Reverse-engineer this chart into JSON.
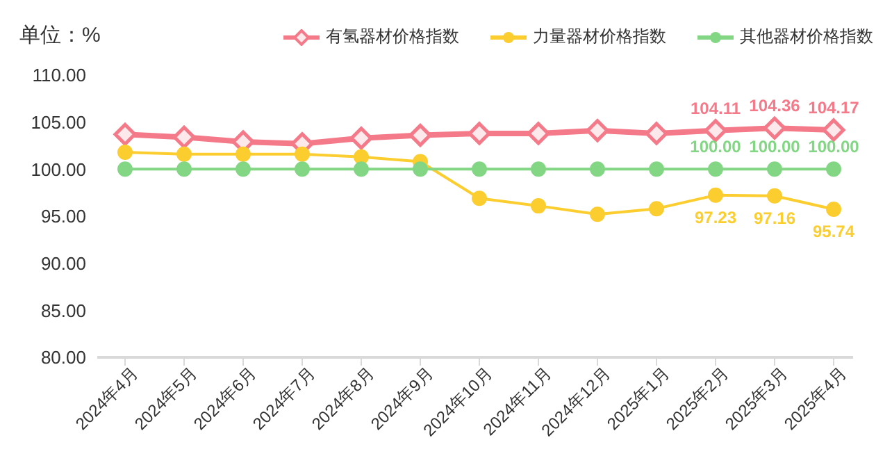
{
  "chart_data": {
    "type": "line",
    "ylabel": "单位：%",
    "categories": [
      "2024年4月",
      "2024年5月",
      "2024年6月",
      "2024年7月",
      "2024年8月",
      "2024年9月",
      "2024年10月",
      "2024年11月",
      "2024年12月",
      "2025年1月",
      "2025年2月",
      "2025年3月",
      "2025年4月"
    ],
    "series": [
      {
        "name": "有氢器材价格指数",
        "color": "#f47a8a",
        "marker": "diamond",
        "values": [
          103.7,
          103.4,
          102.9,
          102.7,
          103.3,
          103.6,
          103.8,
          103.8,
          104.1,
          103.8,
          104.11,
          104.36,
          104.17
        ],
        "value_labels": [
          null,
          null,
          null,
          null,
          null,
          null,
          null,
          null,
          null,
          null,
          "104.11",
          "104.36",
          "104.17"
        ]
      },
      {
        "name": "力量器材价格指数",
        "color": "#fbcd2f",
        "marker": "circle",
        "values": [
          101.8,
          101.6,
          101.6,
          101.6,
          101.3,
          100.8,
          96.9,
          96.1,
          95.2,
          95.8,
          97.23,
          97.16,
          95.74
        ],
        "value_labels": [
          null,
          null,
          null,
          null,
          null,
          null,
          null,
          null,
          null,
          null,
          "97.23",
          "97.16",
          "95.74"
        ]
      },
      {
        "name": "其他器材价格指数",
        "color": "#82d684",
        "marker": "circle",
        "values": [
          100,
          100,
          100,
          100,
          100,
          100,
          100,
          100,
          100,
          100,
          100,
          100,
          100
        ],
        "value_labels": [
          null,
          null,
          null,
          null,
          null,
          null,
          null,
          null,
          null,
          null,
          "100.00",
          "100.00",
          "100.00"
        ]
      }
    ],
    "ylim": [
      80,
      110
    ],
    "yticks": [
      {
        "value": 80,
        "label": "80.00"
      },
      {
        "value": 85,
        "label": "85.00"
      },
      {
        "value": 90,
        "label": "90.00"
      },
      {
        "value": 95,
        "label": "95.00"
      },
      {
        "value": 100,
        "label": "100.00"
      },
      {
        "value": 105,
        "label": "105.00"
      },
      {
        "value": 110,
        "label": "110.00"
      }
    ],
    "grid": false,
    "legend": "top",
    "line_style": "solid"
  }
}
